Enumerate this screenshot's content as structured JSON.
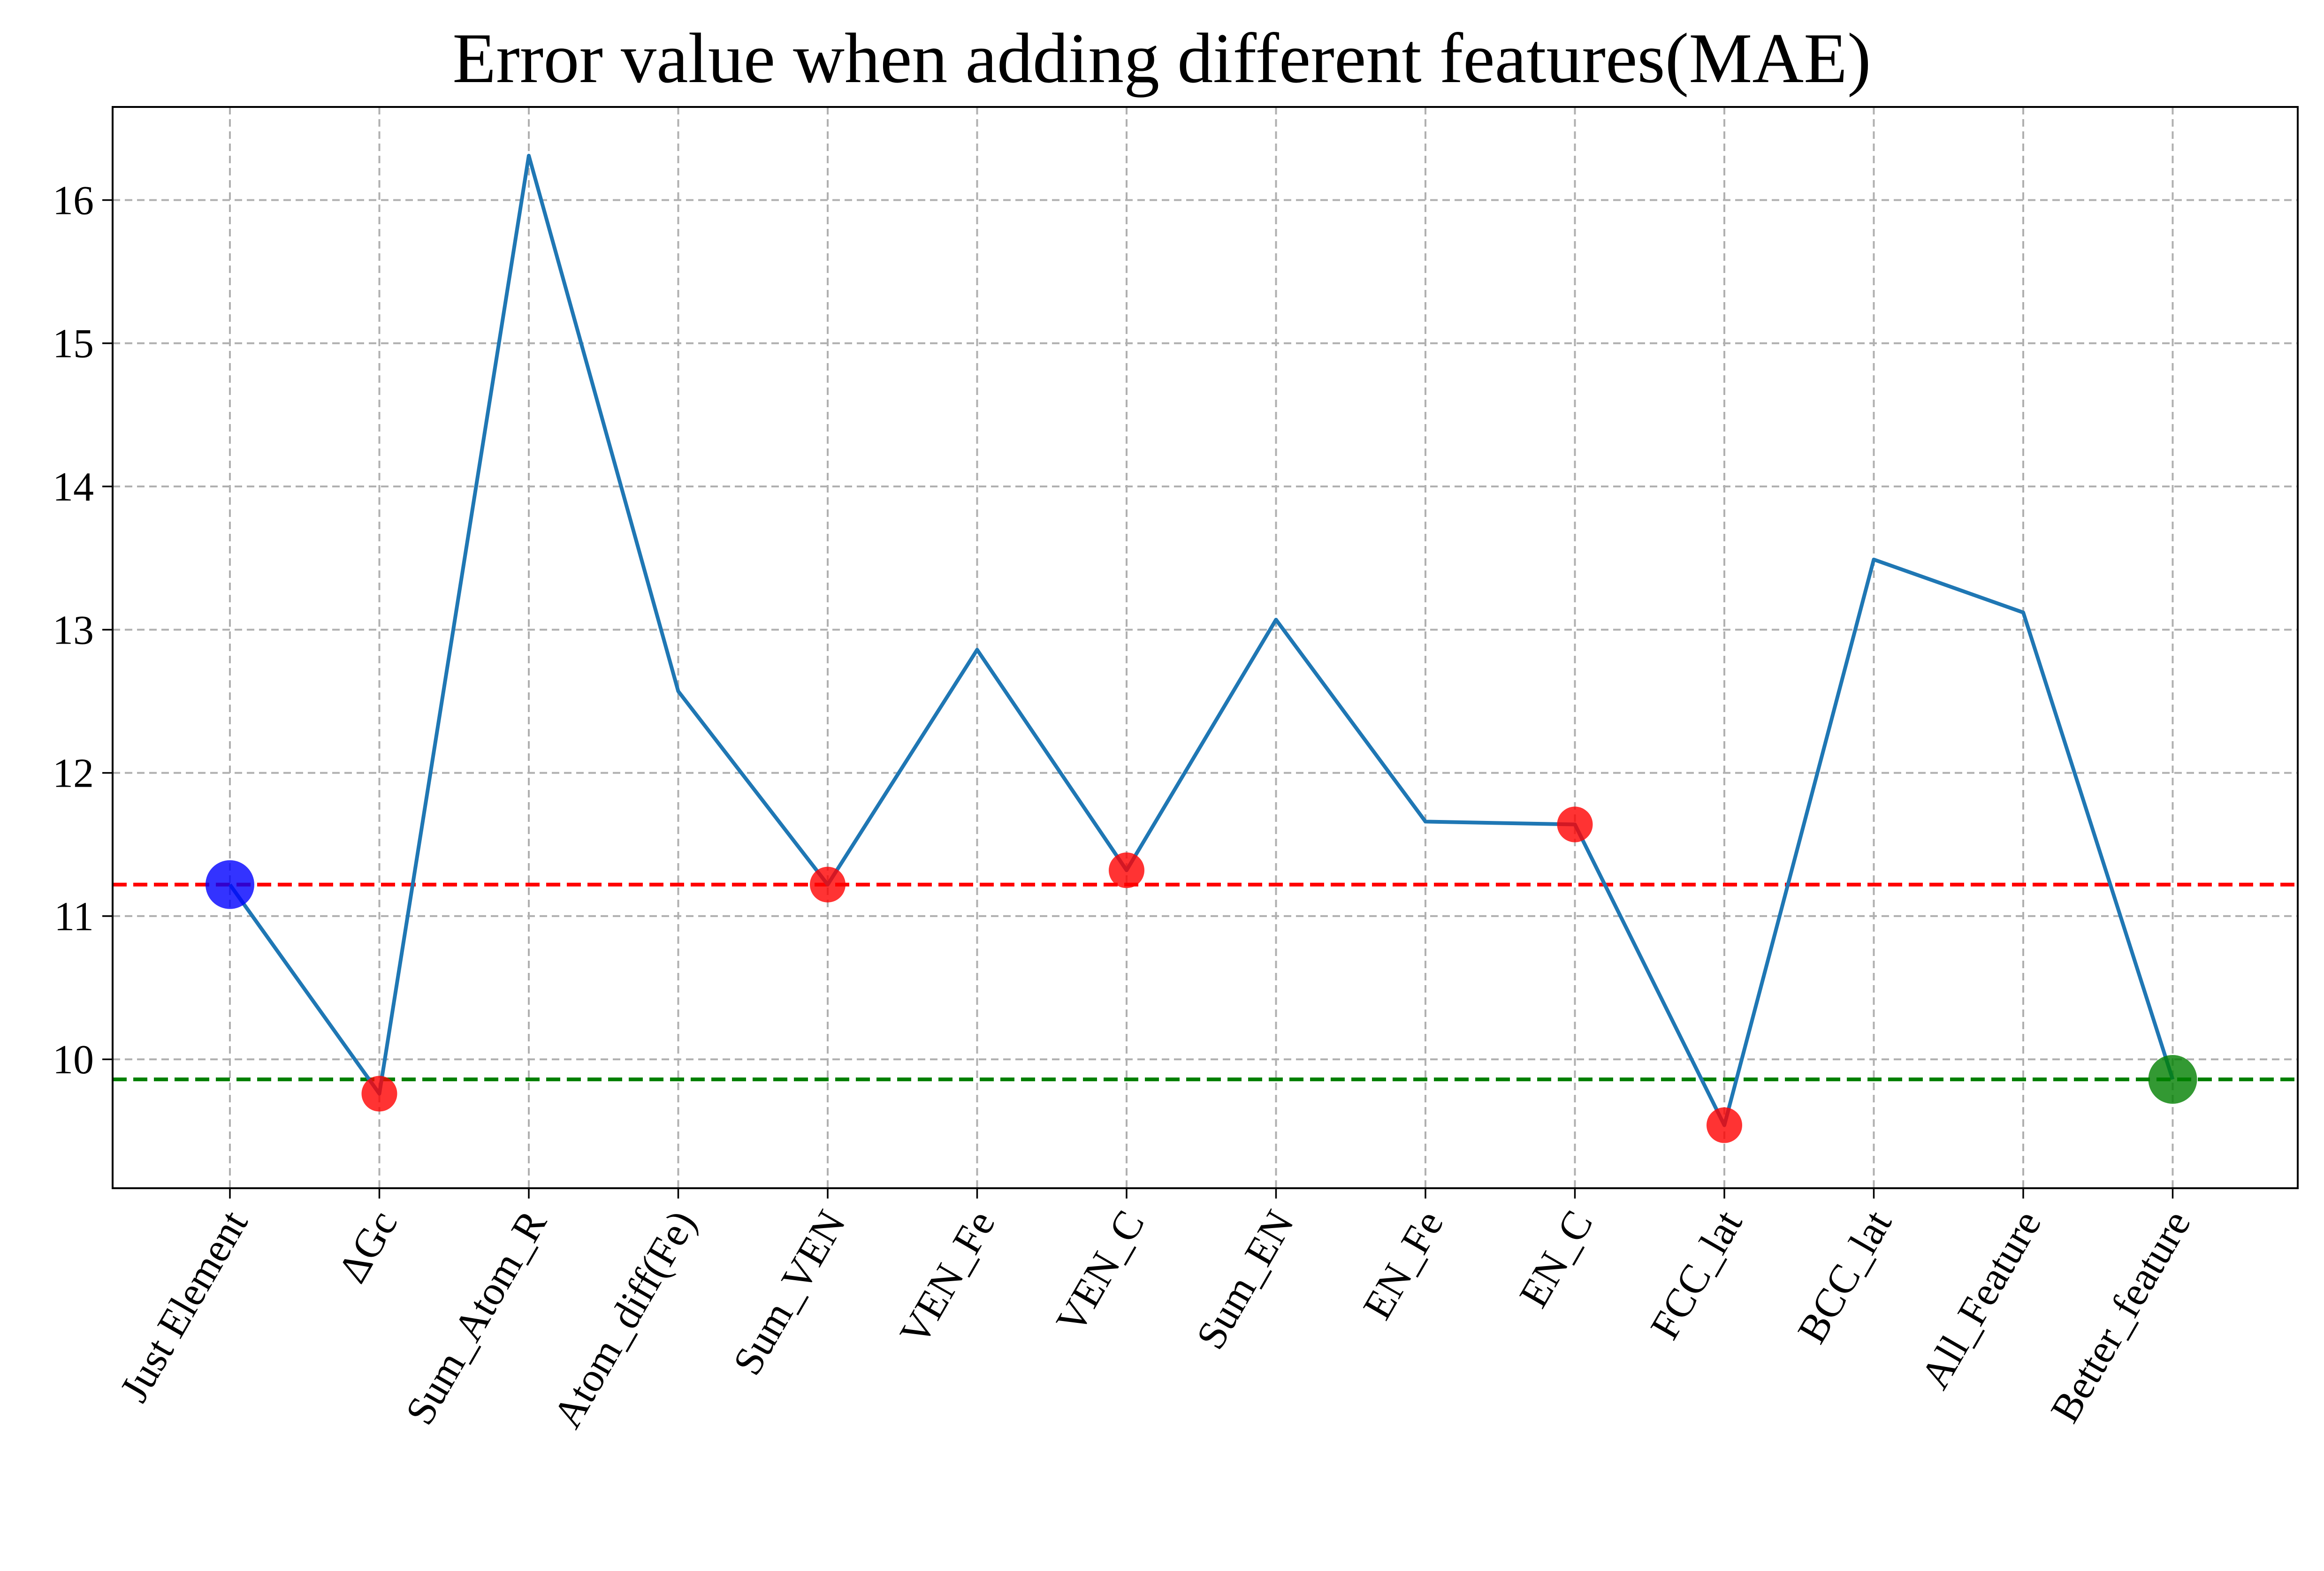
{
  "chart_data": {
    "type": "line",
    "title": "Error value when adding different features(MAE)",
    "xlabel": "",
    "ylabel": "",
    "categories": [
      "Just Element",
      "ΔGc",
      "Sum_Atom_R",
      "Atom_diff(Fe)",
      "Sum_VEN",
      "VEN_Fe",
      "VEN_C",
      "Sum_EN",
      "EN_Fe",
      "EN_C",
      "FCC_lat",
      "BCC_lat",
      "All_Feature",
      "Better_feature"
    ],
    "values": [
      11.22,
      9.76,
      16.31,
      12.57,
      11.22,
      12.86,
      11.32,
      13.07,
      11.66,
      11.64,
      9.54,
      13.49,
      13.12,
      9.86
    ],
    "ylim": [
      9.1,
      16.65
    ],
    "yticks": [
      10,
      11,
      12,
      13,
      14,
      15,
      16
    ],
    "grid": true,
    "series_color": "#1f77b4",
    "reference_lines": [
      {
        "y": 11.22,
        "color": "#ff0000"
      },
      {
        "y": 9.86,
        "color": "#008000"
      }
    ],
    "markers": [
      {
        "category": "Just Element",
        "value": 11.22,
        "color": "#0000ff",
        "size": "large"
      },
      {
        "category": "ΔGc",
        "value": 9.76,
        "color": "#ff0000",
        "size": "small"
      },
      {
        "category": "Sum_VEN",
        "value": 11.22,
        "color": "#ff0000",
        "size": "small"
      },
      {
        "category": "VEN_C",
        "value": 11.32,
        "color": "#ff0000",
        "size": "small"
      },
      {
        "category": "EN_C",
        "value": 11.64,
        "color": "#ff0000",
        "size": "small"
      },
      {
        "category": "FCC_lat",
        "value": 9.54,
        "color": "#ff0000",
        "size": "small"
      },
      {
        "category": "Better_feature",
        "value": 9.86,
        "color": "#008000",
        "size": "large"
      }
    ]
  }
}
